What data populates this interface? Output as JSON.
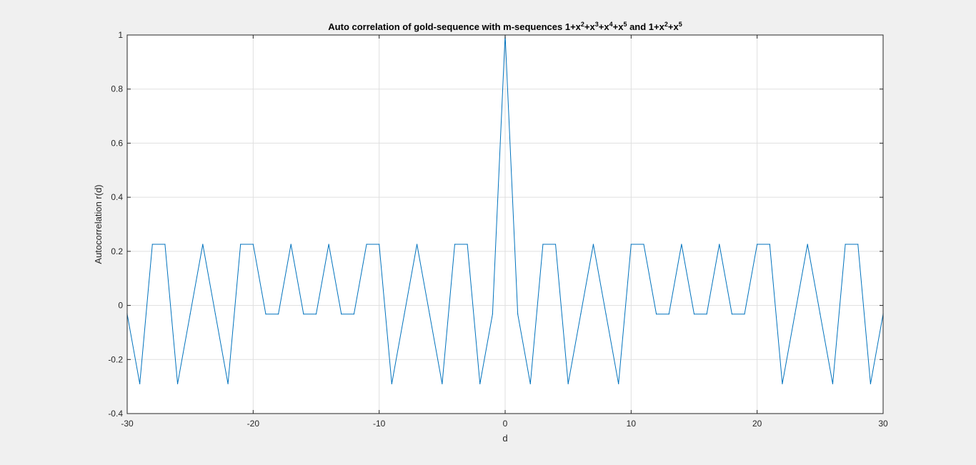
{
  "chart_data": {
    "type": "line",
    "title": {
      "parts": [
        {
          "t": "Auto correlation of gold-sequence with m-sequences 1+x",
          "sup": false
        },
        {
          "t": "2",
          "sup": true
        },
        {
          "t": "+x",
          "sup": false
        },
        {
          "t": "3",
          "sup": true
        },
        {
          "t": "+x",
          "sup": false
        },
        {
          "t": "4",
          "sup": true
        },
        {
          "t": "+x",
          "sup": false
        },
        {
          "t": "5",
          "sup": true
        },
        {
          "t": " and 1+x",
          "sup": false
        },
        {
          "t": "2",
          "sup": true
        },
        {
          "t": "+x",
          "sup": false
        },
        {
          "t": "5",
          "sup": true
        }
      ]
    },
    "xlabel": "d",
    "ylabel": "Autocorrelation r(d)",
    "xlim": [
      -30,
      30
    ],
    "ylim": [
      -0.4,
      1
    ],
    "xticks": [
      -30,
      -20,
      -10,
      0,
      10,
      20,
      30
    ],
    "xtick_labels": [
      "-30",
      "-20",
      "-10",
      "0",
      "10",
      "20",
      "30"
    ],
    "yticks": [
      -0.4,
      -0.2,
      0,
      0.2,
      0.4,
      0.6,
      0.8,
      1
    ],
    "ytick_labels": [
      "-0.4",
      "-0.2",
      "0",
      "0.2",
      "0.4",
      "0.6",
      "0.8",
      "1"
    ],
    "grid": true,
    "line_color": "#0072bd",
    "x": [
      -30,
      -29,
      -28,
      -27,
      -26,
      -25,
      -24,
      -23,
      -22,
      -21,
      -20,
      -19,
      -18,
      -17,
      -16,
      -15,
      -14,
      -13,
      -12,
      -11,
      -10,
      -9,
      -8,
      -7,
      -6,
      -5,
      -4,
      -3,
      -2,
      -1,
      0,
      1,
      2,
      3,
      4,
      5,
      6,
      7,
      8,
      9,
      10,
      11,
      12,
      13,
      14,
      15,
      16,
      17,
      18,
      19,
      20,
      21,
      22,
      23,
      24,
      25,
      26,
      27,
      28,
      29,
      30
    ],
    "series": [
      {
        "values": [
          -0.032,
          -0.29,
          0.226,
          0.226,
          -0.29,
          -0.032,
          0.226,
          -0.032,
          -0.29,
          0.226,
          0.226,
          -0.032,
          -0.032,
          0.226,
          -0.032,
          -0.032,
          0.226,
          -0.032,
          -0.032,
          0.226,
          0.226,
          -0.29,
          -0.032,
          0.226,
          -0.032,
          -0.29,
          0.226,
          0.226,
          -0.29,
          -0.032,
          1.0,
          -0.032,
          -0.29,
          0.226,
          0.226,
          -0.29,
          -0.032,
          0.226,
          -0.032,
          -0.29,
          0.226,
          0.226,
          -0.032,
          -0.032,
          0.226,
          -0.032,
          -0.032,
          0.226,
          -0.032,
          -0.032,
          0.226,
          0.226,
          -0.29,
          -0.032,
          0.226,
          -0.032,
          -0.29,
          0.226,
          0.226,
          -0.29,
          -0.032
        ]
      }
    ]
  }
}
